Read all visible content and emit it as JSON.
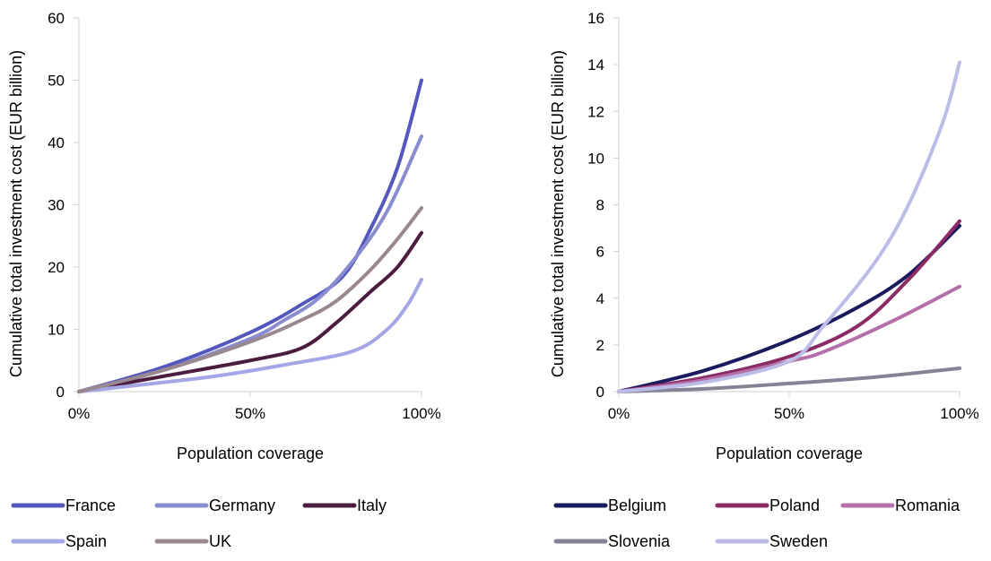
{
  "chart_data": [
    {
      "type": "line",
      "title": "",
      "xlabel": "Population coverage",
      "ylabel": "Cumulative total investment cost (EUR billion)",
      "xlim": [
        0,
        1
      ],
      "ylim": [
        0,
        60
      ],
      "yticks": [
        0,
        10,
        20,
        30,
        40,
        50,
        60
      ],
      "yticklabels": [
        "0",
        "10",
        "20",
        "30",
        "40",
        "50",
        "60"
      ],
      "xticks": [
        0,
        0.5,
        1
      ],
      "xticklabels": [
        "0%",
        "50%",
        "100%"
      ],
      "grid": false,
      "legend": "bottom",
      "series": [
        {
          "name": "France",
          "color": "#5458bd",
          "x": [
            0,
            0.25,
            0.5,
            0.65,
            0.77,
            0.85,
            0.93,
            1.0
          ],
          "y": [
            0,
            4,
            9.5,
            14,
            18.5,
            26,
            36,
            50
          ]
        },
        {
          "name": "Germany",
          "color": "#8a8cd1",
          "x": [
            0,
            0.25,
            0.5,
            0.6,
            0.7,
            0.8,
            0.9,
            1.0
          ],
          "y": [
            0,
            3.5,
            8.5,
            11.5,
            15,
            21,
            29,
            41
          ]
        },
        {
          "name": "Italy",
          "color": "#4b1c3e",
          "x": [
            0,
            0.25,
            0.5,
            0.65,
            0.75,
            0.85,
            0.93,
            1.0
          ],
          "y": [
            0,
            2.5,
            5,
            7,
            11,
            16,
            20,
            25.5
          ]
        },
        {
          "name": "Spain",
          "color": "#a4a6e6",
          "x": [
            0,
            0.2,
            0.4,
            0.6,
            0.8,
            0.9,
            0.96,
            1.0
          ],
          "y": [
            0,
            1.2,
            2.5,
            4.3,
            6.5,
            10,
            14,
            18
          ]
        },
        {
          "name": "UK",
          "color": "#9a8890",
          "x": [
            0,
            0.25,
            0.5,
            0.65,
            0.75,
            0.85,
            0.93,
            1.0
          ],
          "y": [
            0,
            3.5,
            8,
            11.5,
            14.5,
            19.5,
            24.5,
            29.5
          ]
        }
      ]
    },
    {
      "type": "line",
      "title": "",
      "xlabel": "Population coverage",
      "ylabel": "Cumulative total investment cost (EUR billion)",
      "xlim": [
        0,
        1
      ],
      "ylim": [
        0,
        16
      ],
      "yticks": [
        0,
        2,
        4,
        6,
        8,
        10,
        12,
        14,
        16
      ],
      "yticklabels": [
        "0",
        "2",
        "4",
        "6",
        "8",
        "10",
        "12",
        "14",
        "16"
      ],
      "xticks": [
        0,
        0.5,
        1
      ],
      "xticklabels": [
        "0%",
        "50%",
        "100%"
      ],
      "grid": false,
      "legend": "bottom",
      "series": [
        {
          "name": "Belgium",
          "color": "#1a1a5e",
          "x": [
            0,
            0.25,
            0.5,
            0.7,
            0.85,
            1.0
          ],
          "y": [
            0,
            0.9,
            2.2,
            3.6,
            5.0,
            7.1
          ]
        },
        {
          "name": "Poland",
          "color": "#8b2b66",
          "x": [
            0,
            0.25,
            0.5,
            0.7,
            0.85,
            1.0
          ],
          "y": [
            0,
            0.6,
            1.5,
            2.8,
            4.8,
            7.3
          ]
        },
        {
          "name": "Romania",
          "color": "#b46fa8",
          "x": [
            0,
            0.25,
            0.5,
            0.6,
            0.8,
            1.0
          ],
          "y": [
            0,
            0.5,
            1.3,
            1.7,
            3.0,
            4.5
          ]
        },
        {
          "name": "Slovenia",
          "color": "#838395",
          "x": [
            0,
            0.25,
            0.5,
            0.75,
            1.0
          ],
          "y": [
            0,
            0.12,
            0.35,
            0.62,
            1.0
          ]
        },
        {
          "name": "Sweden",
          "color": "#bcbce8",
          "x": [
            0,
            0.25,
            0.5,
            0.6,
            0.75,
            0.85,
            0.95,
            1.0
          ],
          "y": [
            0,
            0.4,
            1.3,
            2.8,
            5.5,
            8.0,
            11.5,
            14.1
          ]
        }
      ]
    }
  ]
}
